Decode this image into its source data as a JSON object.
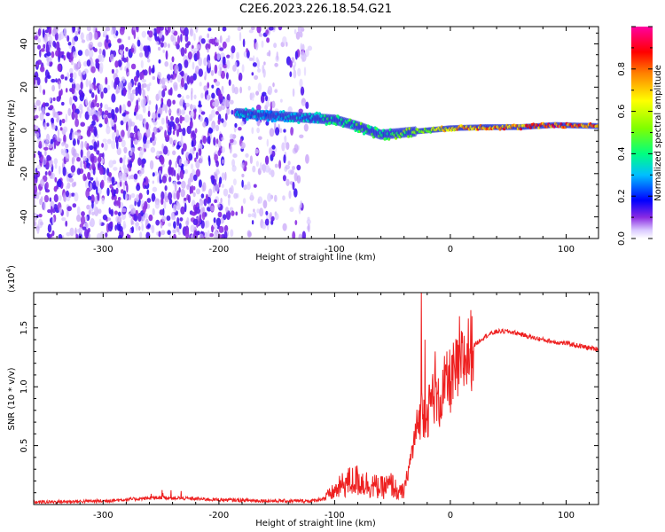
{
  "title": "C2E6.2023.226.18.54.G21",
  "chart_data": [
    {
      "type": "heatmap",
      "xlabel": "Height of straight line (km)",
      "ylabel": "Frequency (Hz)",
      "xlim": [
        -360,
        128
      ],
      "ylim": [
        -50,
        48
      ],
      "xticks": [
        -300,
        -200,
        -100,
        0,
        100
      ],
      "xtick_labels": [
        "-300",
        "-200",
        "-100",
        "0",
        "100"
      ],
      "yticks": [
        -40,
        -20,
        0,
        20,
        40
      ],
      "ytick_labels": [
        "-40",
        "-20",
        "0",
        "20",
        "40"
      ],
      "colorbar": {
        "label": "Normalized spectral amplitude",
        "range": [
          0,
          1
        ],
        "ticks": [
          0.0,
          0.2,
          0.4,
          0.6,
          0.8
        ],
        "tick_labels": [
          "0.0",
          "0.2",
          "0.4",
          "0.6",
          "0.8"
        ],
        "colormap": [
          "#ffffff",
          "#d9c8ff",
          "#8a2be2",
          "#0000ff",
          "#00bfff",
          "#00ff80",
          "#7fff00",
          "#ffff00",
          "#ff8000",
          "#ff0000",
          "#ff00a0"
        ]
      },
      "features": {
        "noise_region_x": [
          -360,
          -120
        ],
        "signal_track": [
          {
            "x": -185,
            "freq": 8,
            "amplitude": 0.35
          },
          {
            "x": -160,
            "freq": 7,
            "amplitude": 0.3
          },
          {
            "x": -130,
            "freq": 6,
            "amplitude": 0.35
          },
          {
            "x": -100,
            "freq": 5,
            "amplitude": 0.45
          },
          {
            "x": -80,
            "freq": 2,
            "amplitude": 0.5
          },
          {
            "x": -60,
            "freq": -2,
            "amplitude": 0.45
          },
          {
            "x": -40,
            "freq": -1,
            "amplitude": 0.55
          },
          {
            "x": -20,
            "freq": 0,
            "amplitude": 0.6
          },
          {
            "x": 0,
            "freq": 1,
            "amplitude": 0.75
          },
          {
            "x": 30,
            "freq": 1.5,
            "amplitude": 0.85
          },
          {
            "x": 60,
            "freq": 1.5,
            "amplitude": 0.85
          },
          {
            "x": 90,
            "freq": 2.5,
            "amplitude": 0.9
          },
          {
            "x": 128,
            "freq": 2,
            "amplitude": 0.85
          }
        ]
      }
    },
    {
      "type": "line",
      "xlabel": "Height of straight line (km)",
      "ylabel": "SNR (10 * v/v)",
      "y_multiplier": "(x10",
      "y_multiplier_exp": "4",
      "y_multiplier_close": ")",
      "xlim": [
        -360,
        128
      ],
      "ylim": [
        0,
        1.8
      ],
      "xticks": [
        -300,
        -200,
        -100,
        0,
        100
      ],
      "xtick_labels": [
        "-300",
        "-200",
        "-100",
        "0",
        "100"
      ],
      "yticks": [
        0.5,
        1.0,
        1.5
      ],
      "ytick_labels": [
        "0.5",
        "1.0",
        "1.5"
      ],
      "color": "#ee2020",
      "series": [
        {
          "x": [
            -360,
            -300,
            -250,
            -200,
            -150,
            -120,
            -110,
            -100,
            -90,
            -80,
            -70,
            -60,
            -50,
            -45,
            -40,
            -35,
            -30,
            -25,
            -20,
            -15,
            -10,
            -5,
            0,
            10,
            20,
            30,
            40,
            50,
            60,
            70,
            80,
            90,
            100,
            110,
            120,
            128
          ],
          "y": [
            0.02,
            0.03,
            0.06,
            0.04,
            0.03,
            0.03,
            0.05,
            0.12,
            0.2,
            0.22,
            0.18,
            0.15,
            0.18,
            0.1,
            0.12,
            0.35,
            0.6,
            0.8,
            0.75,
            0.95,
            0.85,
            1.0,
            1.05,
            1.2,
            1.35,
            1.43,
            1.47,
            1.47,
            1.45,
            1.42,
            1.4,
            1.38,
            1.37,
            1.35,
            1.33,
            1.32
          ],
          "spikes": [
            {
              "x": -25,
              "y": 1.85
            },
            {
              "x": -22,
              "y": 1.4
            },
            {
              "x": -13,
              "y": 1.3
            },
            {
              "x": 8,
              "y": 1.6
            }
          ]
        }
      ]
    }
  ]
}
